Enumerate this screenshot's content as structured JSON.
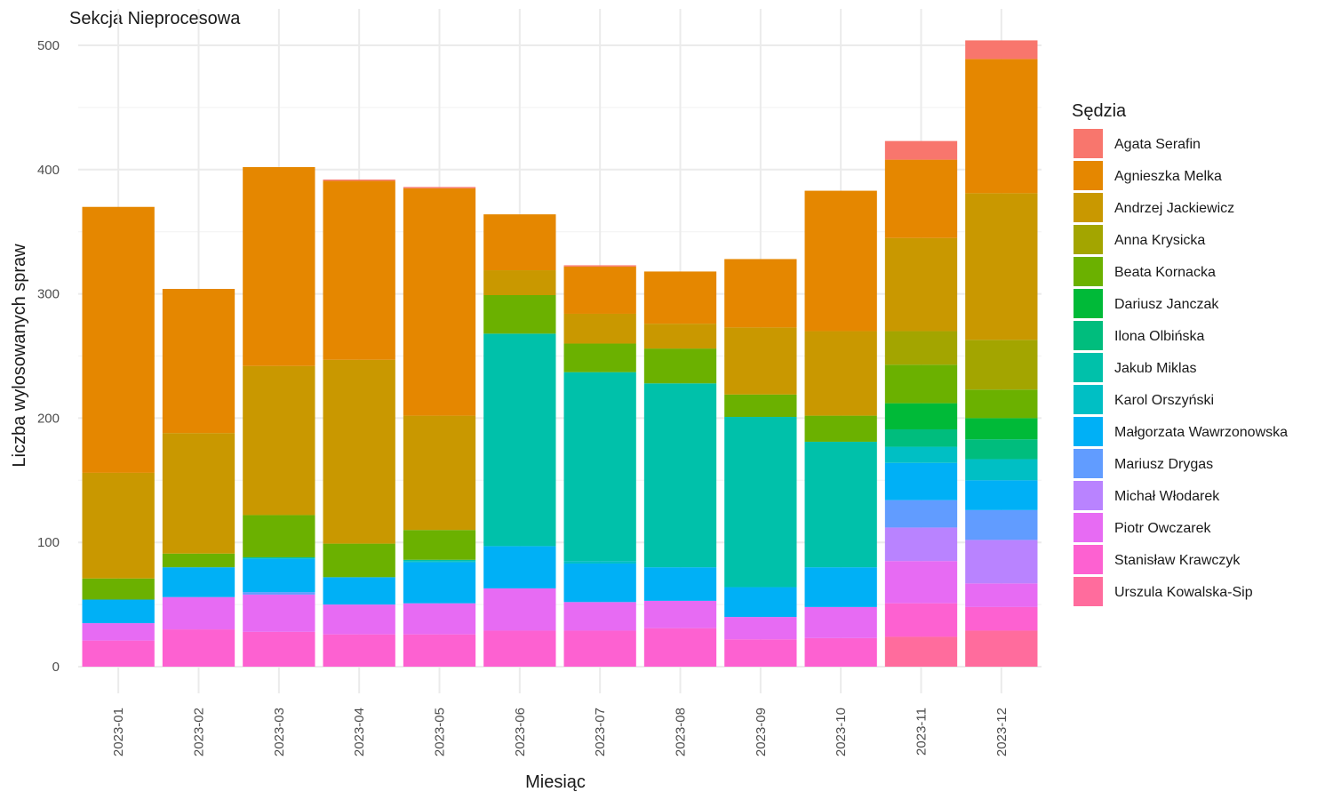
{
  "chart_data": {
    "type": "bar",
    "stacked": true,
    "title": "Sekcja Nieprocesowa",
    "xlabel": "Miesiąc",
    "ylabel": "Liczba wylosowanych spraw",
    "ylim": [
      0,
      530
    ],
    "yticks": [
      0,
      100,
      200,
      300,
      400,
      500
    ],
    "grid": true,
    "legend_title": "Sędzia",
    "legend_position": "right",
    "categories": [
      "2023-01",
      "2023-02",
      "2023-03",
      "2023-04",
      "2023-05",
      "2023-06",
      "2023-07",
      "2023-08",
      "2023-09",
      "2023-10",
      "2023-11",
      "2023-12"
    ],
    "series": [
      {
        "name": "Urszula Kowalska-Sip",
        "color": "#FF6C9D",
        "values": [
          0,
          0,
          0,
          0,
          0,
          0,
          0,
          0,
          0,
          0,
          24,
          29
        ]
      },
      {
        "name": "Stanisław Krawczyk",
        "color": "#FD61D1",
        "values": [
          21,
          30,
          28,
          26,
          26,
          29,
          29,
          31,
          22,
          23,
          27,
          19
        ]
      },
      {
        "name": "Piotr Owczarek",
        "color": "#E76BF3",
        "values": [
          14,
          26,
          30,
          24,
          25,
          34,
          23,
          22,
          18,
          25,
          34,
          19
        ]
      },
      {
        "name": "Michał Włodarek",
        "color": "#B983FF",
        "values": [
          0,
          0,
          0,
          0,
          0,
          0,
          0,
          0,
          0,
          0,
          27,
          35
        ]
      },
      {
        "name": "Mariusz Drygas",
        "color": "#619CFF",
        "values": [
          0,
          0,
          2,
          0,
          0,
          0,
          0,
          0,
          0,
          0,
          22,
          24
        ]
      },
      {
        "name": "Małgorzata Wawrzonowska",
        "color": "#00B0F6",
        "values": [
          19,
          24,
          27,
          22,
          33,
          34,
          31,
          27,
          24,
          32,
          30,
          24
        ]
      },
      {
        "name": "Karol Orszyński",
        "color": "#00BFC4",
        "values": [
          0,
          0,
          0,
          0,
          1,
          0,
          2,
          0,
          0,
          0,
          13,
          17
        ]
      },
      {
        "name": "Jakub Miklas",
        "color": "#00C1AA",
        "values": [
          0,
          0,
          1,
          0,
          1,
          171,
          152,
          148,
          137,
          101,
          0,
          0
        ]
      },
      {
        "name": "Ilona Olbińska",
        "color": "#00BD7D",
        "values": [
          0,
          0,
          0,
          0,
          0,
          0,
          0,
          0,
          0,
          0,
          14,
          16
        ]
      },
      {
        "name": "Dariusz Janczak",
        "color": "#00BA38",
        "values": [
          0,
          0,
          0,
          0,
          0,
          0,
          0,
          0,
          0,
          0,
          21,
          17
        ]
      },
      {
        "name": "Beata Kornacka",
        "color": "#6BB100",
        "values": [
          17,
          11,
          34,
          27,
          24,
          31,
          23,
          28,
          18,
          21,
          31,
          23
        ]
      },
      {
        "name": "Anna Krysicka",
        "color": "#A3A500",
        "values": [
          0,
          0,
          0,
          0,
          0,
          0,
          0,
          0,
          0,
          0,
          27,
          40
        ]
      },
      {
        "name": "Andrzej Jackiewicz",
        "color": "#C99800",
        "values": [
          85,
          97,
          120,
          148,
          92,
          20,
          24,
          20,
          54,
          68,
          75,
          118
        ]
      },
      {
        "name": "Agnieszka Melka",
        "color": "#E58700",
        "values": [
          214,
          116,
          160,
          144,
          183,
          45,
          38,
          42,
          55,
          113,
          63,
          108
        ]
      },
      {
        "name": "Agata Serafin",
        "color": "#F8766D",
        "values": [
          0,
          0,
          0,
          1,
          1,
          0,
          1,
          0,
          0,
          0,
          15,
          15
        ]
      }
    ]
  }
}
